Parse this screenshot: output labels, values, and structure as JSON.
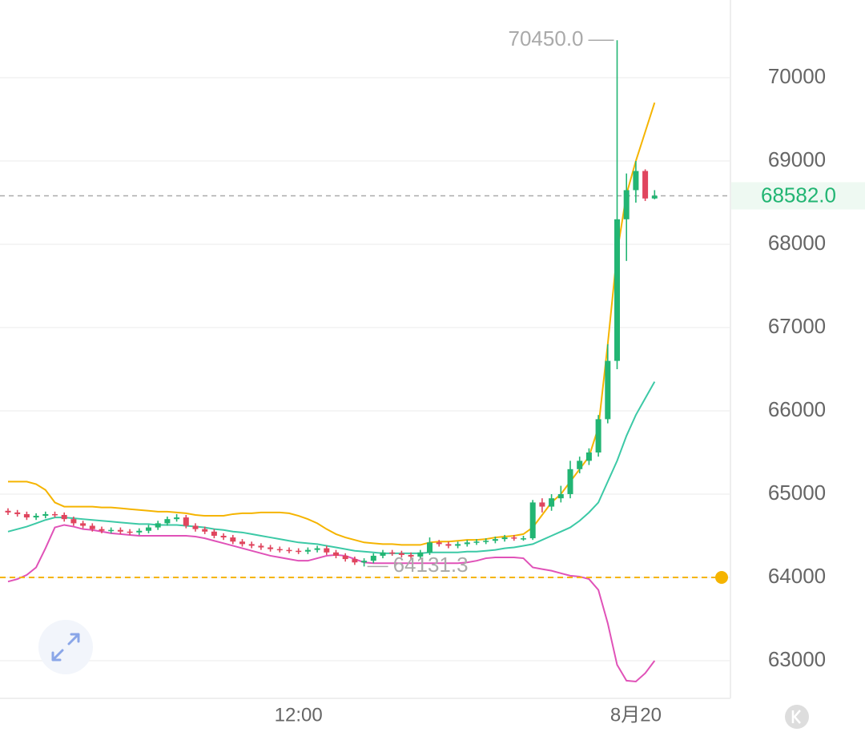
{
  "chart_data": {
    "type": "candlestick",
    "categories": [
      null,
      null,
      null,
      null,
      null,
      null,
      null,
      null,
      null,
      null,
      null,
      null,
      null,
      null,
      null,
      null,
      null,
      null,
      null,
      null,
      null,
      null,
      null,
      null,
      null,
      null,
      null,
      null,
      null,
      null,
      null,
      "12:00",
      null,
      null,
      null,
      null,
      null,
      null,
      null,
      null,
      null,
      null,
      null,
      null,
      null,
      null,
      null,
      null,
      null,
      null,
      null,
      null,
      null,
      null,
      null,
      null,
      null,
      null,
      null,
      null,
      null,
      null,
      null,
      null,
      null,
      null,
      null,
      "8月20",
      null,
      null
    ],
    "open": [
      64800,
      64780,
      64760,
      64720,
      64740,
      64760,
      64750,
      64700,
      64650,
      64620,
      64580,
      64560,
      64570,
      64550,
      64540,
      64560,
      64600,
      64650,
      64700,
      64720,
      64620,
      64580,
      64550,
      64500,
      64480,
      64430,
      64400,
      64380,
      64360,
      64340,
      64330,
      64320,
      64310,
      64330,
      64350,
      64300,
      64260,
      64220,
      64180,
      64200,
      64260,
      64300,
      64290,
      64270,
      64250,
      64300,
      64420,
      64400,
      64380,
      64400,
      64420,
      64430,
      64440,
      64460,
      64480,
      64470,
      64470,
      64900,
      64850,
      64950,
      65000,
      65300,
      65400,
      65500,
      65900,
      66600,
      68300,
      68650,
      68880,
      68550
    ],
    "high": [
      64830,
      64810,
      64790,
      64770,
      64790,
      64790,
      64780,
      64730,
      64680,
      64650,
      64610,
      64600,
      64600,
      64580,
      64590,
      64630,
      64680,
      64730,
      64760,
      64750,
      64650,
      64610,
      64580,
      64530,
      64510,
      64460,
      64430,
      64410,
      64390,
      64370,
      64360,
      64350,
      64360,
      64380,
      64380,
      64330,
      64290,
      64250,
      64230,
      64290,
      64330,
      64330,
      64320,
      64300,
      64330,
      64480,
      64450,
      64430,
      64430,
      64450,
      64460,
      64470,
      64490,
      64510,
      64510,
      64500,
      64930,
      64950,
      65000,
      65100,
      65400,
      65450,
      65550,
      65950,
      66800,
      70450,
      68850,
      69000,
      68900,
      68650
    ],
    "low": [
      64750,
      64730,
      64690,
      64690,
      64710,
      64720,
      64670,
      64620,
      64590,
      64550,
      64530,
      64530,
      64520,
      64510,
      64510,
      64530,
      64570,
      64620,
      64670,
      64590,
      64550,
      64520,
      64470,
      64450,
      64400,
      64370,
      64350,
      64330,
      64310,
      64300,
      64290,
      64280,
      64280,
      64300,
      64270,
      64230,
      64190,
      64150,
      64131.3,
      64170,
      64230,
      64260,
      64240,
      64220,
      64220,
      64270,
      64370,
      64350,
      64350,
      64370,
      64390,
      64400,
      64410,
      64430,
      64440,
      64440,
      64450,
      64780,
      64800,
      64900,
      64950,
      65250,
      65350,
      65450,
      65850,
      66500,
      67800,
      68500,
      68520,
      68540
    ],
    "close": [
      64780,
      64760,
      64720,
      64740,
      64760,
      64750,
      64700,
      64650,
      64620,
      64580,
      64560,
      64570,
      64550,
      64540,
      64560,
      64600,
      64650,
      64700,
      64720,
      64620,
      64580,
      64550,
      64500,
      64480,
      64430,
      64400,
      64380,
      64360,
      64340,
      64330,
      64320,
      64310,
      64330,
      64350,
      64300,
      64260,
      64220,
      64180,
      64200,
      64260,
      64300,
      64290,
      64270,
      64250,
      64300,
      64420,
      64400,
      64380,
      64400,
      64420,
      64430,
      64440,
      64460,
      64480,
      64470,
      64470,
      64900,
      64850,
      64950,
      65000,
      65300,
      65400,
      65500,
      65900,
      66600,
      68300,
      68650,
      68880,
      68550,
      68582
    ],
    "up_color": "#22b573",
    "down_color": "#e0455e",
    "series": [
      {
        "color": "#f5b400",
        "values": [
          65150,
          65150,
          65150,
          65120,
          65050,
          64900,
          64850,
          64850,
          64850,
          64850,
          64840,
          64840,
          64830,
          64820,
          64810,
          64800,
          64790,
          64790,
          64780,
          64770,
          64750,
          64740,
          64740,
          64740,
          64760,
          64770,
          64770,
          64780,
          64780,
          64780,
          64770,
          64740,
          64700,
          64650,
          64580,
          64520,
          64480,
          64450,
          64420,
          64410,
          64400,
          64400,
          64390,
          64390,
          64390,
          64420,
          64430,
          64430,
          64440,
          64450,
          64450,
          64460,
          64480,
          64490,
          64500,
          64520,
          64600,
          64750,
          64900,
          65000,
          65150,
          65300,
          65450,
          65800,
          66800,
          67900,
          68600,
          69000,
          69350,
          69700
        ]
      },
      {
        "color": "#3cc9a6",
        "values": [
          64550,
          64580,
          64610,
          64650,
          64690,
          64720,
          64720,
          64710,
          64700,
          64690,
          64680,
          64670,
          64660,
          64650,
          64640,
          64640,
          64630,
          64630,
          64630,
          64620,
          64610,
          64600,
          64580,
          64570,
          64550,
          64540,
          64520,
          64500,
          64480,
          64460,
          64440,
          64420,
          64410,
          64400,
          64380,
          64360,
          64340,
          64320,
          64310,
          64300,
          64290,
          64290,
          64290,
          64290,
          64290,
          64300,
          64300,
          64300,
          64300,
          64310,
          64310,
          64320,
          64330,
          64350,
          64360,
          64380,
          64400,
          64450,
          64500,
          64550,
          64600,
          64680,
          64780,
          64900,
          65150,
          65400,
          65700,
          65950,
          66150,
          66350
        ]
      },
      {
        "color": "#e052b8",
        "values": [
          63950,
          63980,
          64030,
          64120,
          64350,
          64600,
          64630,
          64610,
          64580,
          64570,
          64550,
          64530,
          64520,
          64510,
          64500,
          64500,
          64500,
          64500,
          64500,
          64500,
          64490,
          64470,
          64440,
          64410,
          64380,
          64350,
          64320,
          64290,
          64260,
          64240,
          64220,
          64200,
          64200,
          64230,
          64260,
          64270,
          64260,
          64220,
          64180,
          64170,
          64170,
          64170,
          64170,
          64170,
          64170,
          64170,
          64170,
          64170,
          64170,
          64180,
          64200,
          64230,
          64240,
          64240,
          64240,
          64230,
          64120,
          64100,
          64080,
          64050,
          64020,
          64010,
          63980,
          63850,
          63450,
          62950,
          62760,
          62750,
          62850,
          63000
        ]
      }
    ],
    "annotations": [
      {
        "value": 70450,
        "label": "70450.0"
      },
      {
        "value": 64131.3,
        "label": "64131.3"
      }
    ],
    "last_price": {
      "value": 68582,
      "label": "68582.0"
    },
    "alert_line": 64000,
    "alert_color": "#f5b400",
    "ylim": [
      62567,
      70933
    ],
    "yticks": [
      63000,
      64000,
      65000,
      66000,
      67000,
      68000,
      69000,
      70000
    ],
    "grid": true
  }
}
